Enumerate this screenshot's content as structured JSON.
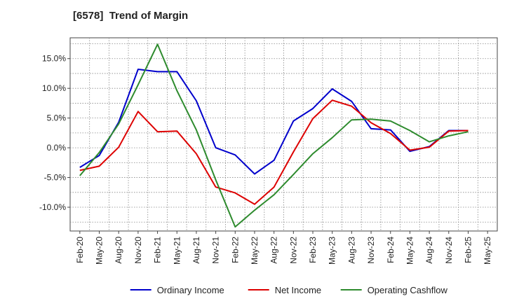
{
  "chart_data": {
    "type": "line",
    "title": "[6578]  Trend of Margin",
    "xlabel": "",
    "ylabel": "",
    "x_ticks": [
      "Feb-20",
      "May-20",
      "Aug-20",
      "Nov-20",
      "Feb-21",
      "May-21",
      "Aug-21",
      "Nov-21",
      "Feb-22",
      "May-22",
      "Aug-22",
      "Nov-22",
      "Feb-23",
      "May-23",
      "Aug-23",
      "Nov-23",
      "Feb-24",
      "May-24",
      "Aug-24",
      "Nov-24",
      "Feb-25",
      "May-25"
    ],
    "y_ticks": [
      15,
      10,
      5,
      0,
      -5,
      -10
    ],
    "y_tick_labels": [
      "15.0%",
      "10.0%",
      "5.0%",
      "0.0%",
      "-5.0%",
      "-10.0%"
    ],
    "ylim": [
      -14,
      18.5
    ],
    "grid": true,
    "legend_position": "bottom",
    "series": [
      {
        "name": "Ordinary Income",
        "color": "#0000cc",
        "values": [
          -3.3,
          -1.3,
          4.3,
          13.2,
          12.8,
          12.8,
          7.9,
          0.0,
          -1.2,
          -4.4,
          -2.1,
          4.5,
          6.6,
          9.9,
          7.8,
          3.2,
          3.0,
          -0.6,
          0.2,
          2.9,
          2.9,
          null
        ]
      },
      {
        "name": "Net Income",
        "color": "#dd0000",
        "values": [
          -3.8,
          -3.1,
          0.1,
          6.1,
          2.7,
          2.8,
          -1.0,
          -6.6,
          -7.6,
          -9.5,
          -6.6,
          -0.7,
          4.9,
          8.0,
          7.0,
          4.2,
          2.4,
          -0.4,
          0.1,
          2.8,
          2.9,
          null
        ]
      },
      {
        "name": "Operating Cashflow",
        "color": "#2e8b2e",
        "values": [
          -4.7,
          -0.8,
          4.0,
          10.6,
          17.4,
          9.6,
          3.0,
          -5.4,
          -13.3,
          -10.5,
          -7.9,
          -4.5,
          -1.0,
          1.7,
          4.7,
          4.8,
          4.5,
          2.9,
          1.0,
          2.0,
          2.7,
          null
        ]
      }
    ]
  }
}
